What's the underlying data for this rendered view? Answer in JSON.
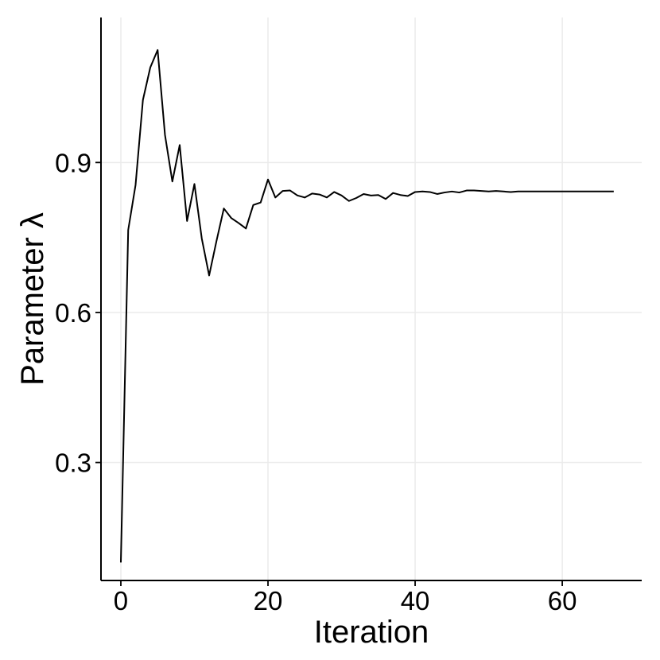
{
  "chart_data": {
    "type": "line",
    "xlabel": "Iteration",
    "ylabel": "Parameter λ",
    "xlim": [
      -2.7,
      70.8
    ],
    "ylim": [
      0.064,
      1.19
    ],
    "x_ticks": [
      0,
      20,
      40,
      60
    ],
    "x_tick_labels": [
      "0",
      "20",
      "40",
      "60"
    ],
    "y_ticks": [
      0.3,
      0.6,
      0.9
    ],
    "y_tick_labels": [
      "0.3",
      "0.6",
      "0.9"
    ],
    "grid": true,
    "series": [
      {
        "x": [
          0,
          1,
          2,
          3,
          4,
          5,
          6,
          7,
          8,
          9,
          10,
          11,
          12,
          13,
          14,
          15,
          16,
          17,
          18,
          19,
          20,
          21,
          22,
          23,
          24,
          25,
          26,
          27,
          28,
          29,
          30,
          31,
          32,
          33,
          34,
          35,
          36,
          37,
          38,
          39,
          40,
          41,
          42,
          43,
          44,
          45,
          46,
          47,
          48,
          49,
          50,
          51,
          52,
          53,
          54,
          55,
          56,
          57,
          58,
          59,
          60,
          61,
          62,
          63,
          64,
          65,
          66,
          67
        ],
        "values": [
          0.1,
          0.765,
          0.855,
          1.025,
          1.09,
          1.125,
          0.955,
          0.862,
          0.935,
          0.783,
          0.857,
          0.748,
          0.674,
          0.743,
          0.808,
          0.789,
          0.779,
          0.768,
          0.815,
          0.82,
          0.866,
          0.83,
          0.843,
          0.844,
          0.834,
          0.83,
          0.838,
          0.836,
          0.83,
          0.841,
          0.834,
          0.823,
          0.829,
          0.837,
          0.834,
          0.835,
          0.827,
          0.839,
          0.835,
          0.833,
          0.841,
          0.842,
          0.841,
          0.837,
          0.84,
          0.842,
          0.84,
          0.844,
          0.844,
          0.843,
          0.842,
          0.843,
          0.842,
          0.841,
          0.842,
          0.842,
          0.842,
          0.842,
          0.842,
          0.842,
          0.842,
          0.842,
          0.842,
          0.842,
          0.842,
          0.842,
          0.842,
          0.842
        ]
      }
    ]
  }
}
